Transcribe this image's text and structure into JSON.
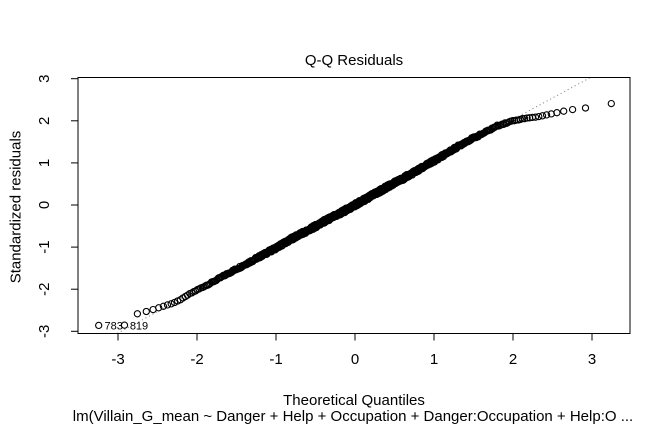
{
  "figure": {
    "title": "Q-Q Residuals",
    "xlabel": "Theoretical Quantiles",
    "ylabel": "Standardized residuals",
    "caption": "lm(Villain_G_mean ~ Danger + Help + Occupation + Danger:Occupation + Help:O ...",
    "background_color": "#ffffff",
    "foreground_color": "#000000"
  },
  "chart_data": {
    "type": "scatter",
    "subtype": "qq-normal-plot",
    "title": "Q-Q Residuals",
    "xlabel": "Theoretical Quantiles",
    "ylabel": "Standardized residuals",
    "sub_caption": "lm(Villain_G_mean ~ Danger + Help + Occupation + Danger:Occupation + Help:O ...",
    "x_ticks": [
      -3,
      -2,
      -1,
      0,
      1,
      2,
      3
    ],
    "y_ticks": [
      -3,
      -2,
      -1,
      0,
      1,
      2,
      3
    ],
    "xlim": [
      -3.51,
      3.48
    ],
    "ylim": [
      -3.05,
      3.03
    ],
    "grid": false,
    "legend": null,
    "n_points": 850,
    "marker": {
      "shape": "open-circle",
      "radius_px": 3.1,
      "color": "#000000"
    },
    "point_jitter_amplitude": 0.045,
    "qq_curve_control_points": [
      [
        -3.24,
        -2.86
      ],
      [
        -2.92,
        -2.86
      ],
      [
        -2.8,
        -2.62
      ],
      [
        -2.75,
        -2.58
      ],
      [
        -2.6,
        -2.51
      ],
      [
        -2.5,
        -2.45
      ],
      [
        -2.4,
        -2.39
      ],
      [
        -2.3,
        -2.33
      ],
      [
        -2.2,
        -2.24
      ],
      [
        -2.1,
        -2.12
      ],
      [
        -2.0,
        -2.02
      ],
      [
        -1.8,
        -1.83
      ],
      [
        -1.6,
        -1.62
      ],
      [
        -1.4,
        -1.42
      ],
      [
        -1.2,
        -1.22
      ],
      [
        -1.0,
        -1.02
      ],
      [
        -0.8,
        -0.8
      ],
      [
        -0.6,
        -0.61
      ],
      [
        -0.4,
        -0.4
      ],
      [
        -0.2,
        -0.21
      ],
      [
        0.0,
        0.0
      ],
      [
        0.2,
        0.21
      ],
      [
        0.4,
        0.42
      ],
      [
        0.6,
        0.62
      ],
      [
        0.8,
        0.83
      ],
      [
        1.0,
        1.05
      ],
      [
        1.2,
        1.27
      ],
      [
        1.4,
        1.5
      ],
      [
        1.6,
        1.68
      ],
      [
        1.8,
        1.88
      ],
      [
        2.0,
        2.0
      ],
      [
        2.1,
        2.04
      ],
      [
        2.2,
        2.07
      ],
      [
        2.3,
        2.09
      ],
      [
        2.4,
        2.13
      ],
      [
        2.5,
        2.17
      ],
      [
        2.6,
        2.21
      ],
      [
        2.7,
        2.25
      ],
      [
        2.8,
        2.28
      ],
      [
        2.95,
        2.31
      ],
      [
        3.25,
        2.41
      ]
    ],
    "reference_line": {
      "style": "dotted",
      "color": "#8c8c8c",
      "slope": 1.015,
      "intercept": 0.004
    },
    "labeled_points": [
      {
        "label": "783",
        "x": -3.24,
        "y": -2.86
      },
      {
        "label": "819",
        "x": -2.92,
        "y": -2.86
      }
    ]
  }
}
